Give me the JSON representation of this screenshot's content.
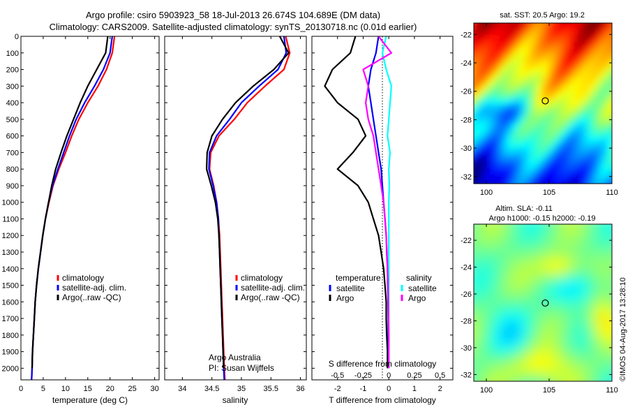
{
  "header": {
    "line1": "Argo profile: csiro 5903923_58 18-Jul-2013 26.674S 104.689E (DM data)",
    "line2": "Climatology: CARS2009. Satellite-adjusted climatology: synTS_20130718.nc (0.01d earlier)"
  },
  "colors": {
    "red": "#ff0000",
    "blue": "#0000ff",
    "black": "#000000",
    "cyan": "#00ffff",
    "magenta": "#ff00ff"
  },
  "chart_data": [
    {
      "id": "temperature",
      "type": "line",
      "xlabel": "temperature (deg C)",
      "ylabel": "",
      "xlim": [
        0,
        31
      ],
      "ylim": [
        2070,
        0
      ],
      "xticks": [
        0,
        5,
        10,
        15,
        20,
        25,
        30
      ],
      "yticks": [
        0,
        100,
        200,
        300,
        400,
        500,
        600,
        700,
        800,
        900,
        1000,
        1100,
        1200,
        1300,
        1400,
        1500,
        1600,
        1700,
        1800,
        1900,
        2000
      ],
      "legend": [
        "climatology",
        "satellite-adj. clim.",
        "Argo(..raw -QC)"
      ],
      "series": [
        {
          "name": "climatology",
          "color": "red",
          "x": [
            21.0,
            20.5,
            19.2,
            17.3,
            15.0,
            13.0,
            11.4,
            10.0,
            8.5,
            7.2,
            6.3,
            5.5,
            4.9,
            4.4,
            3.9,
            3.5,
            3.2,
            3.0,
            2.8,
            2.6,
            2.5,
            2.4
          ],
          "y": [
            0,
            100,
            200,
            300,
            400,
            500,
            600,
            700,
            800,
            900,
            1000,
            1100,
            1200,
            1300,
            1400,
            1500,
            1600,
            1700,
            1800,
            1900,
            2000,
            2070
          ]
        },
        {
          "name": "satellite-adj. clim.",
          "color": "blue",
          "x": [
            20.5,
            20.0,
            18.5,
            16.5,
            14.3,
            12.4,
            10.9,
            9.6,
            8.3,
            7.1,
            6.2,
            5.5,
            4.9,
            4.4,
            3.9,
            3.5,
            3.2,
            3.0,
            2.8,
            2.6,
            2.5,
            2.4
          ],
          "y": [
            0,
            100,
            200,
            300,
            400,
            500,
            600,
            700,
            800,
            900,
            1000,
            1100,
            1200,
            1300,
            1400,
            1500,
            1600,
            1700,
            1800,
            1900,
            2000,
            2070
          ]
        },
        {
          "name": "Argo(..raw -QC)",
          "color": "black",
          "x": [
            19.5,
            19.0,
            17.0,
            15.0,
            13.3,
            11.8,
            10.3,
            9.0,
            7.8,
            6.9,
            6.2,
            5.5,
            4.9,
            4.4,
            3.9,
            3.5,
            3.2,
            3.0,
            2.8,
            2.6,
            2.5
          ],
          "y": [
            0,
            100,
            200,
            300,
            400,
            500,
            600,
            700,
            800,
            900,
            1000,
            1100,
            1200,
            1300,
            1400,
            1500,
            1600,
            1700,
            1800,
            1900,
            2000
          ]
        }
      ]
    },
    {
      "id": "salinity",
      "type": "line",
      "xlabel": "salinity",
      "ylabel": "",
      "xlim": [
        33.7,
        36.1
      ],
      "ylim": [
        2070,
        0
      ],
      "xticks": [
        34,
        34.5,
        35,
        35.5,
        36
      ],
      "xticklabels": [
        "34",
        "34.5",
        "35",
        "35.5",
        "36"
      ],
      "legend": [
        "climatology",
        "satellite-adj. clim.",
        "Argo(..raw -QC)"
      ],
      "annotation": [
        "Argo Australia",
        "PI: Susan Wijffels"
      ],
      "series": [
        {
          "name": "climatology",
          "color": "red",
          "x": [
            35.75,
            35.82,
            35.72,
            35.4,
            35.1,
            34.88,
            34.62,
            34.48,
            34.46,
            34.53,
            34.58,
            34.61,
            34.63,
            34.64,
            34.65,
            34.66,
            34.67,
            34.68,
            34.69,
            34.7,
            34.71,
            34.72
          ],
          "y": [
            0,
            100,
            200,
            300,
            400,
            500,
            600,
            700,
            800,
            900,
            1000,
            1100,
            1200,
            1300,
            1400,
            1500,
            1600,
            1700,
            1800,
            1900,
            2000,
            2070
          ]
        },
        {
          "name": "satellite-adj. clim.",
          "color": "blue",
          "x": [
            35.72,
            35.76,
            35.62,
            35.3,
            35.0,
            34.8,
            34.58,
            34.46,
            34.45,
            34.52,
            34.58,
            34.61,
            34.62,
            34.63,
            34.64,
            34.65,
            34.66,
            34.67,
            34.68,
            34.69,
            34.7,
            34.71
          ],
          "y": [
            0,
            100,
            200,
            300,
            400,
            500,
            600,
            700,
            800,
            900,
            1000,
            1100,
            1200,
            1300,
            1400,
            1500,
            1600,
            1700,
            1800,
            1900,
            2000,
            2070
          ]
        },
        {
          "name": "Argo(..raw -QC)",
          "color": "black",
          "x": [
            35.65,
            35.8,
            35.55,
            35.2,
            34.9,
            34.68,
            34.5,
            34.42,
            34.41,
            34.49,
            34.56,
            34.6,
            34.62,
            34.63,
            34.64,
            34.65,
            34.66,
            34.67,
            34.68,
            34.69,
            34.7
          ],
          "y": [
            0,
            100,
            200,
            300,
            400,
            500,
            600,
            700,
            800,
            900,
            1000,
            1100,
            1200,
            1300,
            1400,
            1500,
            1600,
            1700,
            1800,
            1900,
            2000
          ]
        }
      ]
    },
    {
      "id": "difference",
      "type": "line",
      "xlabel": "T difference from climatology",
      "x2label": "S difference from climatology",
      "xlim": [
        -3.0,
        2.5
      ],
      "ylim": [
        2070,
        0
      ],
      "xticks": [
        -2,
        -1,
        0,
        1,
        2
      ],
      "x2ticks": [
        "-0.5",
        "-0.25",
        "0",
        "0.25",
        "0.5"
      ],
      "x2tick_positions": [
        -2,
        -1,
        0,
        1,
        2
      ],
      "zero_line": "dotted",
      "legend_titles": [
        "temperature",
        "salinity"
      ],
      "legend": [
        {
          "group": "temperature",
          "label": "satellite",
          "color": "blue"
        },
        {
          "group": "temperature",
          "label": "Argo",
          "color": "black"
        },
        {
          "group": "salinity",
          "label": "satellite",
          "color": "cyan"
        },
        {
          "group": "salinity",
          "label": "Argo",
          "color": "magenta"
        }
      ],
      "series": [
        {
          "name": "temperature Argo",
          "color": "black",
          "x": [
            -1.3,
            -1.5,
            -2.2,
            -2.5,
            -2.0,
            -1.2,
            -0.9,
            -1.4,
            -2.0,
            -1.2,
            -0.8,
            -0.6,
            -0.4,
            -0.3,
            -0.2,
            -0.15,
            -0.1,
            -0.1,
            -0.08,
            -0.05,
            -0.05
          ],
          "y": [
            0,
            100,
            200,
            300,
            400,
            500,
            600,
            700,
            800,
            900,
            1000,
            1100,
            1200,
            1300,
            1400,
            1500,
            1600,
            1700,
            1800,
            1900,
            2000
          ]
        },
        {
          "name": "temperature satellite",
          "color": "blue",
          "x": [
            -0.4,
            -0.5,
            -0.7,
            -0.8,
            -0.7,
            -0.6,
            -0.5,
            -0.4,
            -0.3,
            -0.25,
            -0.2,
            -0.15,
            -0.1,
            -0.08,
            -0.05,
            -0.04,
            -0.03,
            -0.02,
            -0.02,
            -0.01,
            0.0
          ],
          "y": [
            0,
            100,
            200,
            300,
            400,
            500,
            600,
            700,
            800,
            900,
            1000,
            1100,
            1200,
            1300,
            1400,
            1500,
            1600,
            1700,
            1800,
            1900,
            2000
          ]
        },
        {
          "name": "salinity satellite",
          "color": "cyan",
          "x": [
            -0.1,
            -0.25,
            -0.1,
            0.1,
            0.05,
            0.0,
            -0.05,
            0.05,
            0.0,
            0.02,
            0.0,
            0.0,
            0.0,
            0.0,
            0.0,
            0.0,
            0.0,
            0.0,
            0.0,
            0.0,
            0.0
          ],
          "y": [
            0,
            100,
            200,
            300,
            400,
            500,
            600,
            700,
            800,
            900,
            1000,
            1100,
            1200,
            1300,
            1400,
            1500,
            1600,
            1700,
            1800,
            1900,
            2000
          ]
        },
        {
          "name": "salinity Argo",
          "color": "magenta",
          "x": [
            -0.4,
            0.1,
            -1.0,
            -0.8,
            -0.9,
            -0.8,
            -0.6,
            -0.5,
            -0.4,
            -0.3,
            -0.2,
            -0.15,
            -0.1,
            -0.07,
            -0.05,
            -0.03,
            -0.02,
            -0.01,
            0.0,
            0.0,
            0.0
          ],
          "y": [
            0,
            100,
            200,
            300,
            400,
            500,
            600,
            700,
            800,
            900,
            1000,
            1100,
            1200,
            1300,
            1400,
            1500,
            1600,
            1700,
            1800,
            1900,
            2000
          ]
        }
      ]
    },
    {
      "id": "sst_map",
      "type": "heatmap",
      "title": "sat. SST: 20.5 Argo: 19.2",
      "xlim": [
        99,
        110
      ],
      "ylim": [
        -32.5,
        -21.2
      ],
      "xticks": [
        100,
        105,
        110
      ],
      "yticks": [
        -22,
        -24,
        -26,
        -28,
        -30,
        -32
      ],
      "marker": {
        "lon": 104.689,
        "lat": -26.674
      }
    },
    {
      "id": "sla_map",
      "type": "heatmap",
      "title": "Altim. SLA: -0.11",
      "subtitle": "Argo h1000: -0.15 h2000: -0.19",
      "xlim": [
        99,
        110
      ],
      "ylim": [
        -32.5,
        -20.8
      ],
      "xticks": [
        100,
        105,
        110
      ],
      "yticks": [
        -22,
        -24,
        -26,
        -28,
        -30,
        -32
      ],
      "marker": {
        "lon": 104.689,
        "lat": -26.674
      }
    }
  ],
  "footer": {
    "credit": "©IMOS 04-Aug-2017 13:28:10"
  }
}
